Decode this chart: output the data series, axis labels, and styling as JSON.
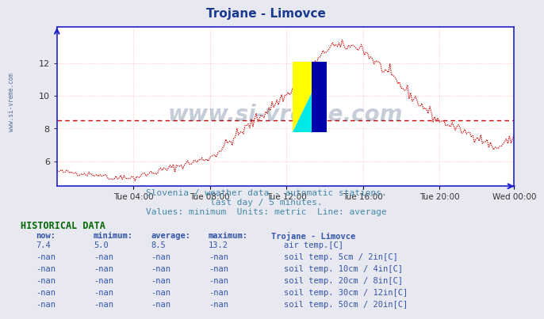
{
  "title": "Trojane - Limovce",
  "title_color": "#1a3a8f",
  "bg_color": "#e8e8f0",
  "plot_bg_color": "#ffffff",
  "grid_color": "#ffb0b0",
  "axis_color": "#2020cc",
  "line_color": "#cc0000",
  "avg_line_color": "#cc0000",
  "avg_value": 8.5,
  "y_ticks": [
    6,
    8,
    10,
    12
  ],
  "ylim": [
    4.5,
    14.2
  ],
  "x_ticks_labels": [
    "Tue 04:00",
    "Tue 08:00",
    "Tue 12:00",
    "Tue 16:00",
    "Tue 20:00",
    "Wed 00:00"
  ],
  "x_ticks_pos": [
    48,
    96,
    144,
    192,
    240,
    287
  ],
  "watermark": "www.si-vreme.com",
  "watermark_color": "#1a3a6b",
  "left_label": "www.si-vreme.com",
  "subtitle1": "Slovenia / weather data - automatic stations.",
  "subtitle2": "last day / 5 minutes.",
  "subtitle3": "Values: minimum  Units: metric  Line: average",
  "subtitle_color": "#4488aa",
  "hist_title": "HISTORICAL DATA",
  "hist_color": "#006600",
  "col_headers": [
    "now:",
    "minimum:",
    "average:",
    "maximum:",
    "Trojane - Limovce"
  ],
  "rows": [
    {
      "now": "7.4",
      "min": "5.0",
      "avg": "8.5",
      "max": "13.2",
      "icon_color": "#cc0000",
      "label": "air temp.[C]"
    },
    {
      "now": "-nan",
      "min": "-nan",
      "avg": "-nan",
      "max": "-nan",
      "icon_color": "#c8a882",
      "label": "soil temp. 5cm / 2in[C]"
    },
    {
      "now": "-nan",
      "min": "-nan",
      "avg": "-nan",
      "max": "-nan",
      "icon_color": "#b87820",
      "label": "soil temp. 10cm / 4in[C]"
    },
    {
      "now": "-nan",
      "min": "-nan",
      "avg": "-nan",
      "max": "-nan",
      "icon_color": "#a06010",
      "label": "soil temp. 20cm / 8in[C]"
    },
    {
      "now": "-nan",
      "min": "-nan",
      "avg": "-nan",
      "max": "-nan",
      "icon_color": "#785008",
      "label": "soil temp. 30cm / 12in[C]"
    },
    {
      "now": "-nan",
      "min": "-nan",
      "avg": "-nan",
      "max": "-nan",
      "icon_color": "#604010",
      "label": "soil temp. 50cm / 20in[C]"
    }
  ],
  "logo_colors": {
    "yellow": "#ffff00",
    "cyan": "#00e8e8",
    "blue": "#0000aa"
  },
  "n_points": 288
}
